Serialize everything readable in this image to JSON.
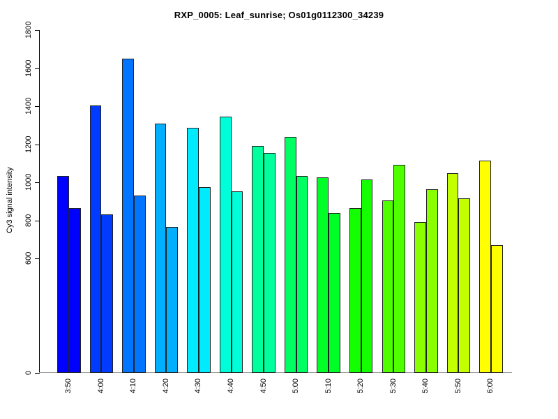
{
  "chart_data": {
    "type": "bar",
    "title": "RXP_0005: Leaf_sunrise; Os01g0112300_34239",
    "xlabel": "",
    "ylabel": "Cy3 signal intensity",
    "ylim": [
      0,
      1800
    ],
    "y_ticks": [
      0,
      600,
      800,
      1000,
      1200,
      1400,
      1600,
      1800
    ],
    "grid": false,
    "legend_position": "none",
    "categories": [
      "3:50",
      "4:00",
      "4:10",
      "4:20",
      "4:30",
      "4:40",
      "4:50",
      "5:00",
      "5:10",
      "5:20",
      "5:30",
      "5:40",
      "5:50",
      "6:00"
    ],
    "series": [
      {
        "name": "left-bar",
        "values": [
          1034,
          1404,
          1650,
          1308,
          1287,
          1345,
          1191,
          1239,
          1026,
          865,
          905,
          792,
          1048,
          1114
        ]
      },
      {
        "name": "right-bar",
        "values": [
          865,
          832,
          930,
          766,
          975,
          953,
          1155,
          1034,
          839,
          1015,
          1092,
          964,
          917,
          671
        ]
      }
    ],
    "group_colors": [
      "#0000FF",
      "#003BFF",
      "#0075FF",
      "#00B0FF",
      "#00EBFF",
      "#00FFD8",
      "#00FF9D",
      "#00FF62",
      "#00FF27",
      "#14FF00",
      "#4FFF00",
      "#89FF00",
      "#C4FF00",
      "#FFFF00"
    ],
    "bar_border_color": "#222222",
    "axis_color": "#000000",
    "baseline_color": "#999999"
  }
}
